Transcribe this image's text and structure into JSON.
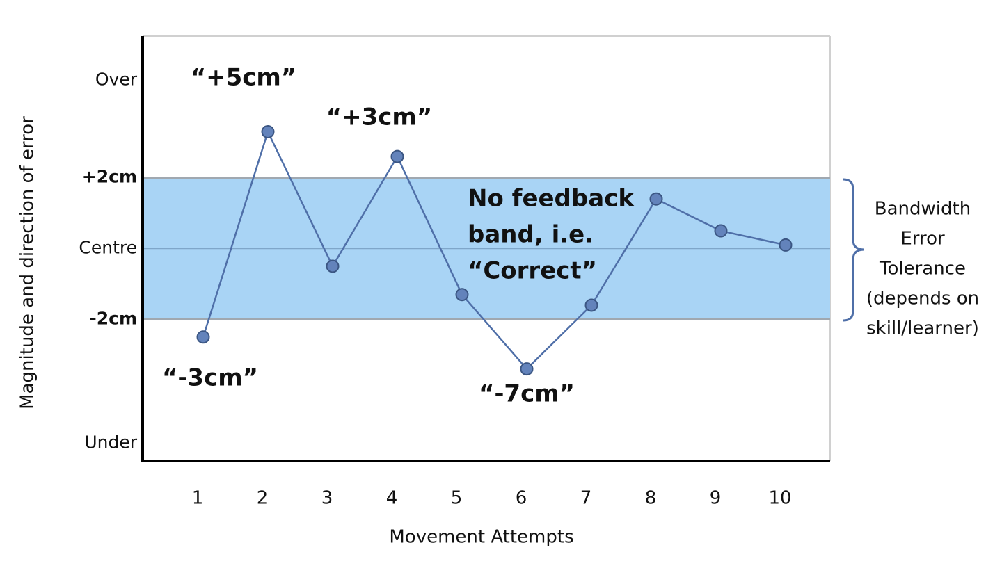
{
  "chart_data": {
    "type": "line",
    "y_label": "Magnitude and direction of error",
    "x_label": "Movement Attempts",
    "categories": [
      "1",
      "2",
      "3",
      "4",
      "5",
      "6",
      "7",
      "8",
      "9",
      "10"
    ],
    "values": [
      -2.5,
      3.3,
      -0.5,
      2.6,
      -1.3,
      -3.4,
      -1.6,
      1.4,
      0.5,
      0.1
    ],
    "color": "#4f6fa8",
    "marker_color": "#6383bb",
    "ylim": [
      -6,
      6
    ],
    "yticks": [
      {
        "value": -5.5,
        "label": "Under"
      },
      {
        "value": -2,
        "label": "-2cm"
      },
      {
        "value": 0,
        "label": "Centre"
      },
      {
        "value": 2,
        "label": "+2cm"
      },
      {
        "value": 4.75,
        "label": "Over"
      }
    ],
    "tolerance_band": [
      -2,
      2
    ],
    "band_color": "#a9d4f5",
    "annotations": [
      "“-3cm”",
      "“+5cm”",
      "“+3cm”",
      "“-7cm”"
    ],
    "band_annotation": [
      "No feedback",
      "band, i.e.",
      "“Correct”"
    ],
    "band_label": [
      "Bandwidth",
      "Error",
      "Tolerance",
      "(depends on",
      "skill/learner)"
    ]
  }
}
